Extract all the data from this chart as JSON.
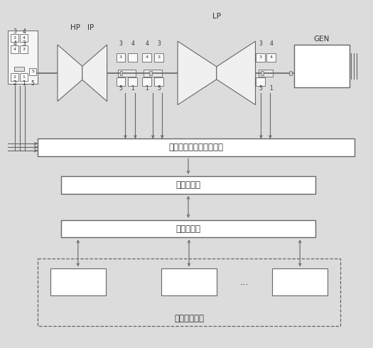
{
  "bg_color": "#dcdcdc",
  "line_color": "#666666",
  "text_color": "#333333",
  "title_interface": "汽轮机热工保护系统接口",
  "title_compute": "计算服务器",
  "title_web": "网页服务器",
  "title_browser": "用户端浏览器",
  "label_hp": "HP",
  "label_ip": "IP",
  "label_lp": "LP",
  "label_gen": "GEN",
  "font_size_main": 8.5,
  "font_size_label": 7.5,
  "font_size_small": 5.5
}
